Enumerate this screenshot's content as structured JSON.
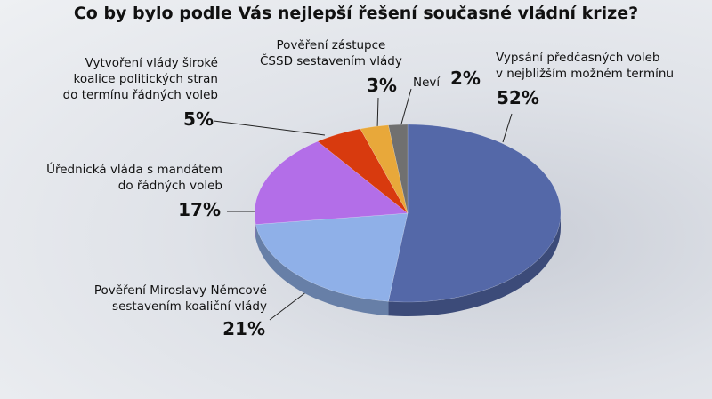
{
  "chart_data": {
    "type": "pie",
    "title": "Co by bylo podle Vás nejlepší řešení současné vládní krize?",
    "categories": [
      "Vypsání předčasných voleb\nv nejbližším možném termínu",
      "Pověření Miroslavy Němcové\nsestavením koaliční vlády",
      "Úřednická vláda s mandátem\ndo řádných voleb",
      "Vytvoření vlády široké\nkoalice politických stran\ndo termínu řádných voleb",
      "Pověření zástupce\nČSSD sestavením vlády",
      "Neví"
    ],
    "values": [
      52,
      21,
      17,
      5,
      3,
      2
    ],
    "value_labels": [
      "52%",
      "21%",
      "17%",
      "5%",
      "3%",
      "2%"
    ],
    "colors": [
      "#5468a8",
      "#8fb0e8",
      "#b36ee8",
      "#d83a0e",
      "#e8a83a",
      "#707070"
    ]
  }
}
